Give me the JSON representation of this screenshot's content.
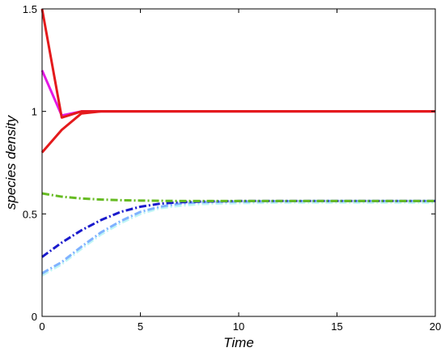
{
  "chart_data": {
    "type": "line",
    "title": "",
    "xlabel": "Time",
    "ylabel": "species density",
    "xlim": [
      0,
      20
    ],
    "ylim": [
      0,
      1.5
    ],
    "xticks": [
      0,
      5,
      10,
      15,
      20
    ],
    "xtick_labels": [
      "0",
      "5",
      "10",
      "15",
      "20"
    ],
    "yticks": [
      0,
      0.5,
      1,
      1.5
    ],
    "ytick_labels": [
      "0",
      "0.5",
      "1",
      "1.5"
    ],
    "grid": false,
    "legend": "none",
    "series": [
      {
        "color": "#e41a1c",
        "style": "solid",
        "x": [
          0,
          1,
          2,
          3,
          4,
          6,
          8,
          10,
          12,
          14,
          16,
          18,
          20
        ],
        "y": [
          1.5,
          0.97,
          1.0,
          1.0,
          1.0,
          1.0,
          1.0,
          1.0,
          1.0,
          1.0,
          1.0,
          1.0,
          1.0
        ]
      },
      {
        "color": "#e41ae4",
        "style": "solid",
        "x": [
          0,
          1,
          2,
          3,
          4,
          6,
          8,
          10,
          12,
          14,
          16,
          18,
          20
        ],
        "y": [
          1.2,
          0.98,
          1.0,
          1.0,
          1.0,
          1.0,
          1.0,
          1.0,
          1.0,
          1.0,
          1.0,
          1.0,
          1.0
        ]
      },
      {
        "color": "#e41a1c",
        "style": "solid",
        "x": [
          0,
          1,
          2,
          3,
          4,
          6,
          8,
          10,
          12,
          14,
          16,
          18,
          20
        ],
        "y": [
          0.8,
          0.91,
          0.99,
          1.0,
          1.0,
          1.0,
          1.0,
          1.0,
          1.0,
          1.0,
          1.0,
          1.0,
          1.0
        ]
      },
      {
        "color": "#66bb22",
        "style": "dashdot",
        "x": [
          0,
          1,
          2,
          3,
          4,
          5,
          6,
          7,
          8,
          10,
          12,
          14,
          16,
          18,
          20
        ],
        "y": [
          0.6,
          0.584,
          0.575,
          0.57,
          0.567,
          0.565,
          0.564,
          0.563,
          0.563,
          0.563,
          0.563,
          0.563,
          0.563,
          0.563,
          0.563
        ]
      },
      {
        "color": "#1a1acc",
        "style": "dashdot",
        "x": [
          0,
          1,
          2,
          3,
          4,
          5,
          6,
          7,
          8,
          10,
          12,
          14,
          16,
          18,
          20
        ],
        "y": [
          0.29,
          0.36,
          0.42,
          0.47,
          0.51,
          0.535,
          0.55,
          0.557,
          0.56,
          0.563,
          0.563,
          0.563,
          0.563,
          0.563,
          0.563
        ]
      },
      {
        "color": "#7fb2ff",
        "style": "dashdot",
        "x": [
          0,
          1,
          2,
          3,
          4,
          5,
          6,
          7,
          8,
          10,
          12,
          14,
          16,
          18,
          20
        ],
        "y": [
          0.21,
          0.265,
          0.34,
          0.41,
          0.465,
          0.51,
          0.535,
          0.55,
          0.557,
          0.56,
          0.562,
          0.563,
          0.563,
          0.563,
          0.563
        ]
      },
      {
        "color": "#bff5f5",
        "style": "dashdot",
        "x": [
          0,
          1,
          2,
          3,
          4,
          5,
          6,
          7,
          8,
          10,
          12,
          14,
          16,
          18,
          20
        ],
        "y": [
          0.2,
          0.255,
          0.33,
          0.4,
          0.455,
          0.5,
          0.528,
          0.54,
          0.548,
          0.553,
          0.555,
          0.555,
          0.555,
          0.555,
          0.555
        ]
      }
    ]
  }
}
